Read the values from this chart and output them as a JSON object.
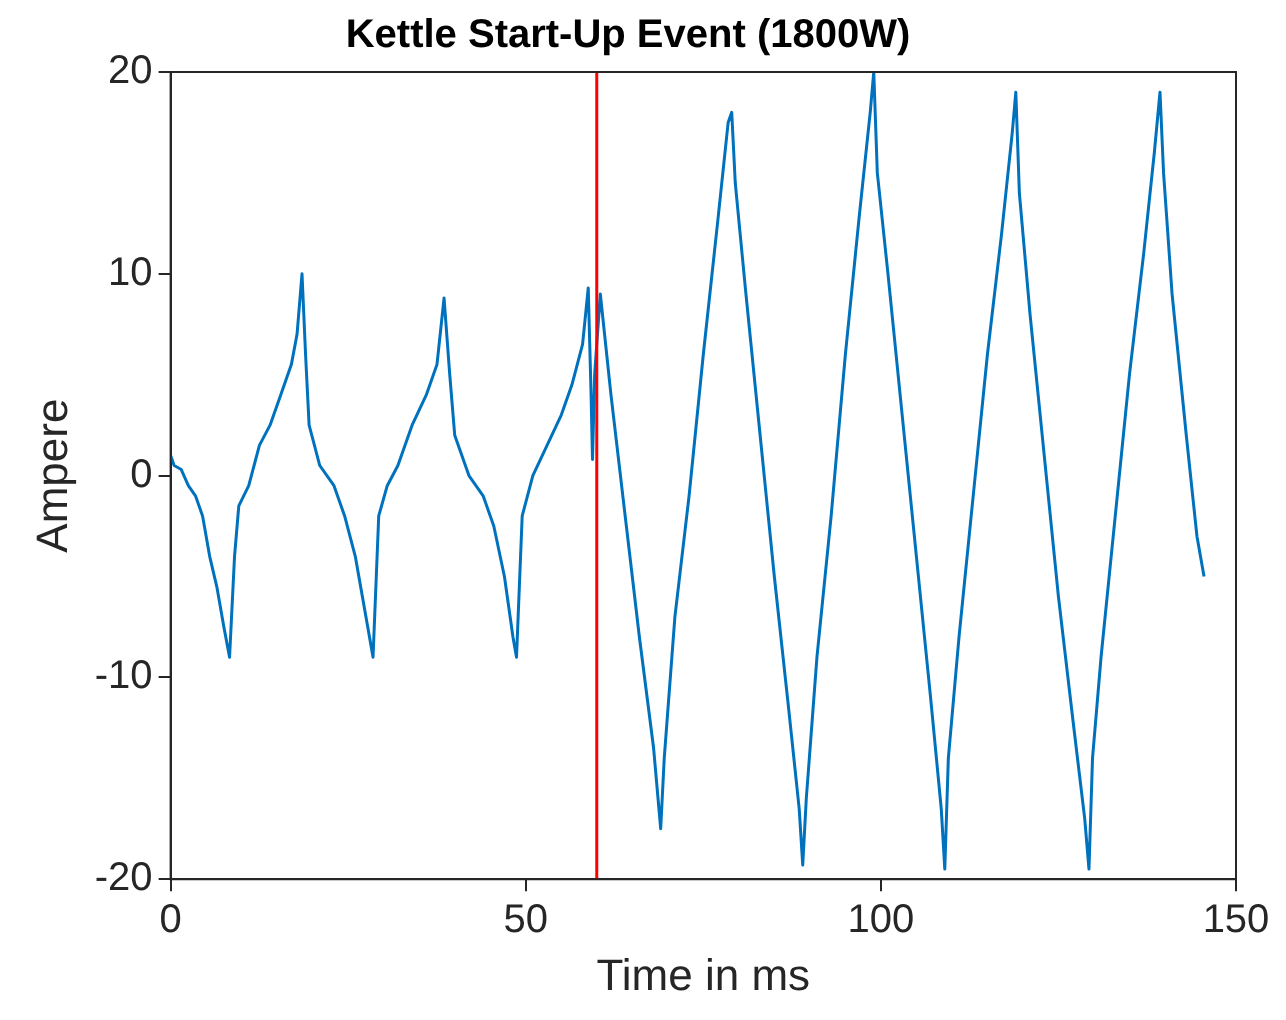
{
  "chart_data": {
    "type": "line",
    "title": "Kettle Start-Up Event (1800W)",
    "xlabel": "Time in ms",
    "ylabel": "Ampere",
    "xlim": [
      0,
      150
    ],
    "xticks": [
      0,
      50,
      100,
      150
    ],
    "ylim": [
      -20,
      20
    ],
    "yticks": [
      -20,
      -10,
      0,
      10,
      20
    ],
    "grid": false,
    "legend": false,
    "marker": "none",
    "line_style": "solid",
    "ref_lines": [
      {
        "axis": "x",
        "value": 60,
        "color": "#ff0000"
      }
    ],
    "series": [
      {
        "color": "#0072bd",
        "x": [
          0,
          0.5,
          1.5,
          2.5,
          3.5,
          4.5,
          5.5,
          6.5,
          7.5,
          8.3,
          9,
          9.6,
          11,
          12.5,
          14,
          15.5,
          17,
          17.8,
          18.5,
          19,
          19.5,
          21,
          23,
          24.5,
          26,
          27.5,
          28.5,
          29.3,
          30.5,
          32,
          34,
          36,
          37.5,
          38.5,
          39.3,
          40,
          42,
          44,
          45.5,
          47,
          48.2,
          48.7,
          49.5,
          51,
          53,
          55,
          56.5,
          58,
          58.8,
          59.2,
          59.4,
          59.7,
          60.5,
          62,
          64,
          66,
          68,
          69,
          69.5,
          71,
          73,
          75,
          77,
          78.5,
          79,
          79.5,
          81,
          83,
          85,
          87,
          88.5,
          89,
          89.5,
          91,
          93,
          95,
          97,
          98.5,
          99,
          99.5,
          101,
          103,
          105,
          107,
          108.5,
          109,
          109.5,
          111,
          113,
          115,
          117,
          118.5,
          119,
          119.5,
          121,
          123,
          125,
          127,
          128.7,
          129.3,
          129.8,
          131,
          133,
          135,
          137,
          138.5,
          139.3,
          139.8,
          141,
          143,
          144.5,
          145.5
        ],
        "values": [
          1,
          0.5,
          0.3,
          -0.5,
          -1,
          -2,
          -4,
          -5.5,
          -7.5,
          -9,
          -4,
          -1.5,
          -0.5,
          1.5,
          2.5,
          4,
          5.5,
          7,
          10,
          6,
          2.5,
          0.5,
          -0.5,
          -2,
          -4,
          -7,
          -9,
          -2,
          -0.5,
          0.5,
          2.5,
          4,
          5.5,
          8.8,
          5,
          2,
          0,
          -1,
          -2.5,
          -5,
          -8,
          -9,
          -2,
          0,
          1.5,
          3,
          4.5,
          6.5,
          9.3,
          4,
          0.8,
          5,
          9,
          4,
          -2,
          -8,
          -13.5,
          -17.5,
          -14,
          -7,
          -1,
          6,
          12.5,
          17.5,
          18,
          14.5,
          9,
          2,
          -5,
          -11.5,
          -16.5,
          -19.3,
          -16,
          -9,
          -2,
          6,
          13,
          18,
          20,
          15,
          10,
          3,
          -4,
          -11,
          -16.5,
          -19.5,
          -14,
          -8,
          -1,
          6,
          12,
          17,
          19,
          14,
          8,
          1,
          -6,
          -12,
          -17,
          -19.5,
          -14,
          -9,
          -2,
          5,
          11,
          16,
          19,
          15,
          9,
          2,
          -3,
          -5
        ]
      }
    ]
  }
}
